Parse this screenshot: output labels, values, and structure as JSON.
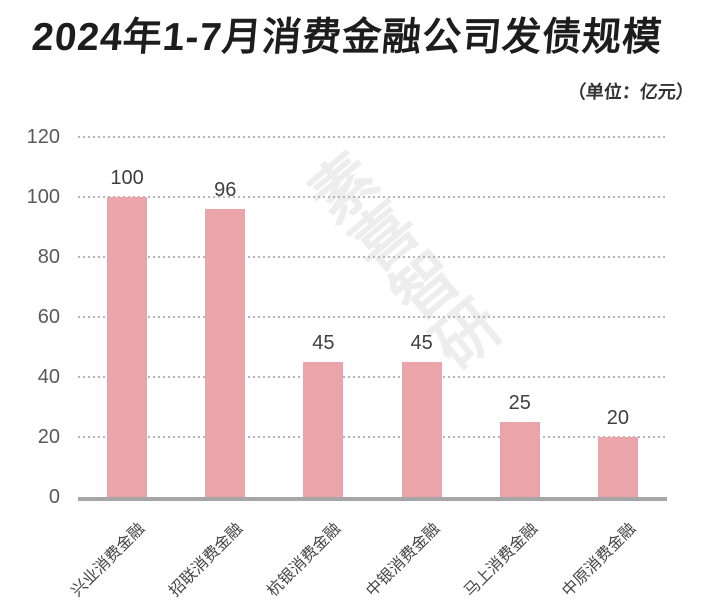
{
  "title": "2024年1-7月消费金融公司发债规模",
  "unit_note": "（单位：亿元）",
  "watermark": "素喜智研",
  "colors": {
    "background": "#FFFFFF",
    "bar": "#ECA4AB",
    "title": "#1D1D1D",
    "unit_note": "#333333",
    "y_axis_label": "#595959",
    "value_label": "#3F3F3F",
    "category_label": "#454545",
    "baseline": "#A6A6A6",
    "gridline": "#B5B5B5",
    "watermark": "#EDEDED"
  },
  "chart_data": {
    "type": "bar",
    "title": "2024年1-7月消费金融公司发债规模",
    "unit": "亿元",
    "categories": [
      "兴业消费金融",
      "招联消费金融",
      "杭银消费金融",
      "中银消费金融",
      "马上消费金融",
      "中原消费金融"
    ],
    "values": [
      100,
      96,
      45,
      45,
      25,
      20
    ],
    "xlabel": "",
    "ylabel": "",
    "ylim": [
      0,
      120
    ],
    "yticks": [
      0,
      20,
      40,
      60,
      80,
      100,
      120
    ],
    "grid": "horizontal-dotted",
    "legend": "none",
    "value_labels_shown": true,
    "category_label_rotation_deg": 45
  }
}
